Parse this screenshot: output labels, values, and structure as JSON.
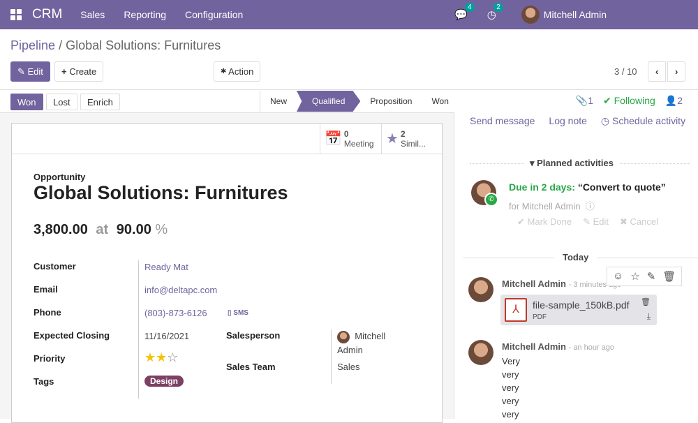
{
  "nav": {
    "brand": "CRM",
    "menus": [
      "Sales",
      "Reporting",
      "Configuration"
    ],
    "messages_count": "4",
    "activities_count": "2",
    "user": "Mitchell Admin",
    "color": "#71639e"
  },
  "breadcrumb": {
    "parent": "Pipeline",
    "sep": "/",
    "current": "Global Solutions: Furnitures"
  },
  "toolbar": {
    "edit": "Edit",
    "create": "Create",
    "action": "Action",
    "pager": "3 / 10"
  },
  "status": {
    "buttons": [
      "Won",
      "Lost",
      "Enrich"
    ],
    "stages": [
      "New",
      "Qualified",
      "Proposition",
      "Won"
    ],
    "active_stage": "Qualified"
  },
  "smart": {
    "meeting_count": "0",
    "meeting_label": "Meeting",
    "similar_count": "2",
    "similar_label": "Simil..."
  },
  "form": {
    "kind": "Opportunity",
    "title": "Global Solutions: Furnitures",
    "revenue": "3,800.00",
    "at": "at",
    "probability": "90.00",
    "pct": "%",
    "customer_label": "Customer",
    "customer": "Ready Mat",
    "email_label": "Email",
    "email": "info@deltapc.com",
    "phone_label": "Phone",
    "phone": "(803)-873-6126",
    "sms": "SMS",
    "closing_label": "Expected Closing",
    "closing": "11/16/2021",
    "priority_label": "Priority",
    "priority": 2,
    "priority_max": 3,
    "tags_label": "Tags",
    "tag": "Design",
    "salesperson_label": "Salesperson",
    "salesperson_1": "Mitchell",
    "salesperson_2": "Admin",
    "team_label": "Sales Team",
    "team": "Sales"
  },
  "chatter": {
    "attachments": "1",
    "following": "Following",
    "followers": "2",
    "send": "Send message",
    "log": "Log note",
    "schedule": "Schedule activity",
    "planned": "Planned activities",
    "due": "Due in 2 days:",
    "activity": "“Convert to quote”",
    "for": "for Mitchell Admin",
    "mark_done": "Mark Done",
    "edit": "Edit",
    "cancel": "Cancel",
    "today": "Today",
    "messages": [
      {
        "author": "Mitchell Admin",
        "time": "- 3 minutes ago",
        "file": "file-sample_150kB.pdf",
        "file_type": "PDF"
      },
      {
        "author": "Mitchell Admin",
        "time": "- an hour ago",
        "lines": [
          "Very",
          "very",
          "very",
          "very",
          "very"
        ]
      }
    ]
  }
}
